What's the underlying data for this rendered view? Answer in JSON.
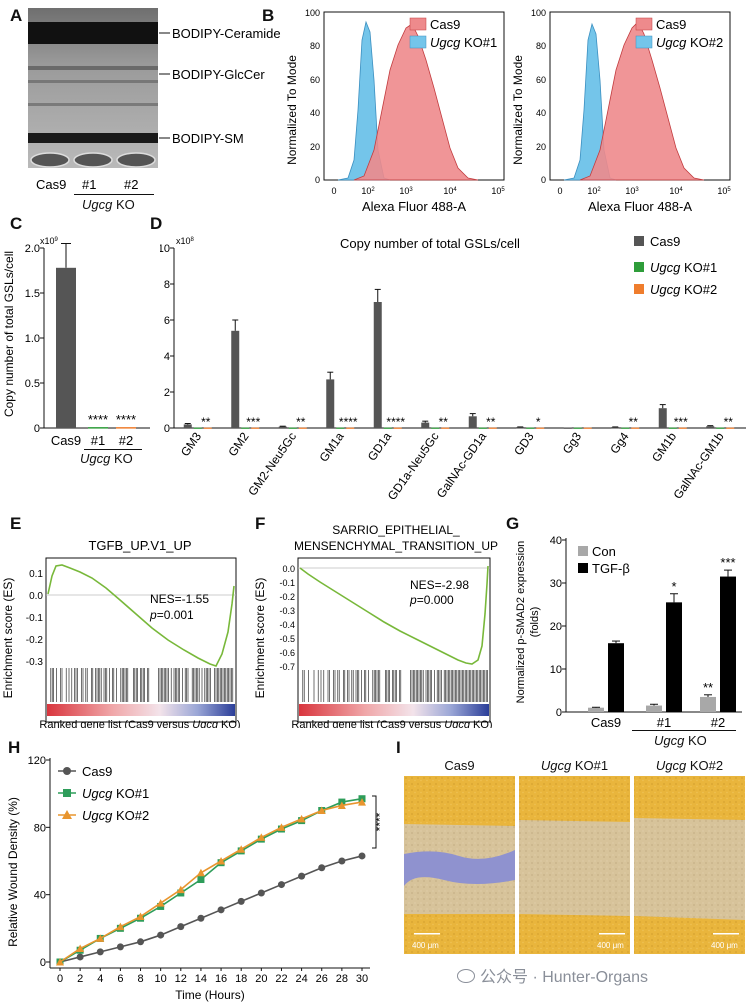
{
  "panels": {
    "a": {
      "letter": "A",
      "band_labels": [
        "BODIPY-Ceramide",
        "BODIPY-GlcCer",
        "BODIPY-SM"
      ],
      "lanes": [
        "Cas9",
        "#1",
        "#2"
      ],
      "group": "Ugcg",
      "group_suffix": " KO"
    },
    "b": {
      "letter": "B",
      "ylabel": "Normalized To Mode",
      "xlabel": "Alexa Fluor 488-A",
      "yticks": [
        "0",
        "20",
        "40",
        "60",
        "80",
        "100"
      ],
      "xticks": [
        "0",
        "10",
        "10",
        "10",
        "10"
      ],
      "xtick_exp": [
        "",
        "2",
        "3",
        "4",
        "5"
      ],
      "plots": [
        {
          "legend": [
            {
              "label": "Cas9",
              "italic": "",
              "color": "#ee8a8c"
            },
            {
              "label": " KO#1",
              "italic": "Ugcg",
              "color": "#7ec8ea"
            }
          ]
        },
        {
          "legend": [
            {
              "label": "Cas9",
              "italic": "",
              "color": "#ee8a8c"
            },
            {
              "label": " KO#2",
              "italic": "Ugcg",
              "color": "#7ec8ea"
            }
          ]
        }
      ]
    },
    "c": {
      "letter": "C",
      "ylabel": "Copy number of total GSLs/cell",
      "scale": "x10",
      "scale_exp": "9",
      "yticks": [
        "0",
        "0.5",
        "1.0",
        "1.5",
        "2.0"
      ],
      "group": "Ugcg",
      "group_suffix": " KO"
    },
    "d": {
      "letter": "D",
      "title": "Copy number of total GSLs/cell",
      "scale": "x10",
      "scale_exp": "8",
      "yticks": [
        "0",
        "2",
        "4",
        "6",
        "8",
        "10"
      ],
      "legend": [
        {
          "italic": "",
          "label": "Cas9",
          "color": "#555555"
        },
        {
          "italic": "Ugcg",
          "label": " KO#1",
          "color": "#2e9d3a"
        },
        {
          "italic": "Ugcg",
          "label": " KO#2",
          "color": "#ef7d2d"
        }
      ]
    },
    "e": {
      "letter": "E",
      "title": "TGFB_UP.V1_UP",
      "ylabel": "Enrichment score (ES)",
      "nes": "NES=-1.55",
      "p_sym": "p",
      "p_val": "=0.001",
      "xlabel_pre": "Ranked gene list (Cas9 versus ",
      "xlabel_it": "Ugcg",
      "xlabel_post": " KO)",
      "yticks": [
        "0.1",
        "0.0",
        "-0.1",
        "-0.2",
        "-0.3"
      ]
    },
    "f": {
      "letter": "F",
      "title1": "SARRIO_EPITHELIAL_",
      "title2": "MENSENCHYMAL_TRANSITION_UP",
      "ylabel": "Enrichment score (ES)",
      "nes": "NES=-2.98",
      "p_sym": "p",
      "p_val": "=0.000",
      "xlabel_pre": "Ranked gene list (Cas9 versus ",
      "xlabel_it": "Ugcg",
      "xlabel_post": " KO)",
      "yticks": [
        "0.0",
        "-0.1",
        "-0.2",
        "-0.3",
        "-0.4",
        "-0.5",
        "-0.6",
        "-0.7"
      ]
    },
    "g": {
      "letter": "G",
      "ylabel1": "Normalized p-SMAD2 expression",
      "ylabel2": "(folds)",
      "yticks": [
        "0",
        "10",
        "20",
        "30",
        "40"
      ],
      "legend": [
        "Con",
        "TGF-β"
      ],
      "group": "Ugcg",
      "group_suffix": " KO"
    },
    "h": {
      "letter": "H",
      "ylabel": "Relative Wound Density (%)",
      "xlabel": "Time (Hours)",
      "yticks": [
        "0",
        "40",
        "80",
        "120"
      ],
      "xticks": [
        "0",
        "2",
        "4",
        "6",
        "8",
        "10",
        "12",
        "14",
        "16",
        "18",
        "20",
        "22",
        "24",
        "26",
        "28",
        "30"
      ],
      "legend": [
        {
          "italic": "",
          "label": "Cas9"
        },
        {
          "italic": "Ugcg",
          "label": " KO#1"
        },
        {
          "italic": "Ugcg",
          "label": " KO#2"
        }
      ],
      "sig": "****"
    },
    "i": {
      "letter": "I",
      "images": [
        {
          "italic": "",
          "title": "Cas9",
          "scale": "400 μm"
        },
        {
          "italic": "Ugcg",
          "title": " KO#1",
          "scale": "400 μm"
        },
        {
          "italic": "Ugcg",
          "title": " KO#2",
          "scale": "400 μm"
        }
      ]
    }
  },
  "watermark": "公众号 · Hunter-Organs",
  "chart_data": [
    {
      "id": "C",
      "type": "bar",
      "categories": [
        "Cas9",
        "#1",
        "#2"
      ],
      "values": [
        1.78,
        0.01,
        0.01
      ],
      "errors": [
        0.27,
        0.0,
        0.0
      ],
      "ylim": [
        0,
        2.0
      ],
      "significance": [
        "",
        "****",
        "****"
      ],
      "colors": [
        "#555555",
        "#2e9d3a",
        "#ef7d2d"
      ]
    },
    {
      "id": "D",
      "type": "bar",
      "categories": [
        "GM3",
        "GM2",
        "GM2-Neu5Gc",
        "GM1a",
        "GD1a",
        "GD1a-Neu5Gc",
        "GalNAc-GD1a",
        "GD3",
        "Gg3",
        "Gg4",
        "GM1b",
        "GalNAc-GM1b"
      ],
      "ylim": [
        0,
        10
      ],
      "series": [
        {
          "name": "Cas9",
          "values": [
            0.2,
            5.4,
            0.08,
            2.7,
            7.0,
            0.3,
            0.65,
            0.05,
            0.02,
            0.05,
            1.1,
            0.1
          ],
          "errors": [
            0.05,
            0.6,
            0.02,
            0.4,
            0.7,
            0.08,
            0.15,
            0.01,
            0.0,
            0.01,
            0.2,
            0.03
          ]
        },
        {
          "name": "Ugcg KO#1",
          "values": [
            0.02,
            0.02,
            0.02,
            0.02,
            0.02,
            0.02,
            0.02,
            0.02,
            0.02,
            0.02,
            0.02,
            0.02
          ]
        },
        {
          "name": "Ugcg KO#2",
          "values": [
            0.02,
            0.02,
            0.02,
            0.02,
            0.02,
            0.02,
            0.02,
            0.02,
            0.02,
            0.02,
            0.02,
            0.02
          ]
        }
      ],
      "significance": [
        "**",
        "***",
        "**",
        "****",
        "****",
        "**",
        "**",
        "*",
        "",
        "**",
        "***",
        "**"
      ]
    },
    {
      "id": "G",
      "type": "bar",
      "categories": [
        "Cas9",
        "#1",
        "#2"
      ],
      "ylim": [
        0,
        40
      ],
      "series": [
        {
          "name": "Con",
          "values": [
            1.0,
            1.5,
            3.5
          ],
          "errors": [
            0.1,
            0.3,
            0.5
          ]
        },
        {
          "name": "TGF-β",
          "values": [
            16.0,
            25.5,
            31.5
          ],
          "errors": [
            0.5,
            2.0,
            1.5
          ]
        }
      ],
      "significance_con": [
        "",
        "",
        "**"
      ],
      "significance_tgf": [
        "",
        "*",
        "***"
      ]
    },
    {
      "id": "H",
      "type": "line",
      "x": [
        0,
        2,
        4,
        6,
        8,
        10,
        12,
        14,
        16,
        18,
        20,
        22,
        24,
        26,
        28,
        30
      ],
      "ylim": [
        0,
        120
      ],
      "xlim": [
        0,
        30
      ],
      "series": [
        {
          "name": "Cas9",
          "values": [
            0,
            3,
            6,
            9,
            12,
            16,
            21,
            26,
            31,
            36,
            41,
            46,
            51,
            56,
            60,
            63
          ]
        },
        {
          "name": "Ugcg KO#1",
          "values": [
            0,
            7,
            14,
            20,
            26,
            33,
            41,
            49,
            59,
            66,
            73,
            79,
            84,
            90,
            95,
            97
          ]
        },
        {
          "name": "Ugcg KO#2",
          "values": [
            0,
            8,
            14,
            21,
            27,
            35,
            43,
            53,
            60,
            67,
            74,
            80,
            85,
            90,
            93,
            95
          ]
        }
      ]
    }
  ]
}
